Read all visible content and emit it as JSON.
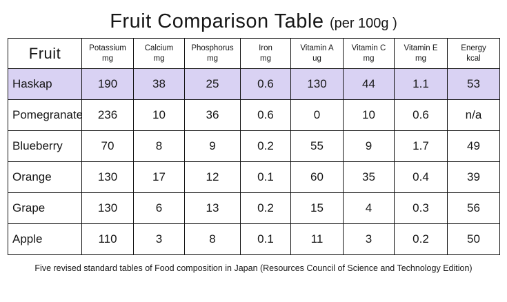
{
  "title": {
    "main": "Fruit Comparison Table",
    "suffix": "(per 100g )"
  },
  "table": {
    "fruit_header": "Fruit",
    "columns": [
      {
        "label": "Potassium",
        "unit": "mg"
      },
      {
        "label": "Calcium",
        "unit": "mg"
      },
      {
        "label": "Phosphorus",
        "unit": "mg"
      },
      {
        "label": "Iron",
        "unit": "mg"
      },
      {
        "label": "Vitamin A",
        "unit": "ug"
      },
      {
        "label": "Vitamin C",
        "unit": "mg"
      },
      {
        "label": "Vitamin E",
        "unit": "mg"
      },
      {
        "label": "Energy",
        "unit": "kcal"
      }
    ],
    "rows": [
      {
        "fruit": "Haskap",
        "highlighted": true,
        "values": [
          "190",
          "38",
          "25",
          "0.6",
          "130",
          "44",
          "1.1",
          "53"
        ]
      },
      {
        "fruit": "Pomegranate",
        "highlighted": false,
        "values": [
          "236",
          "10",
          "36",
          "0.6",
          "0",
          "10",
          "0.6",
          "n/a"
        ]
      },
      {
        "fruit": "Blueberry",
        "highlighted": false,
        "values": [
          "70",
          "8",
          "9",
          "0.2",
          "55",
          "9",
          "1.7",
          "49"
        ]
      },
      {
        "fruit": "Orange",
        "highlighted": false,
        "values": [
          "130",
          "17",
          "12",
          "0.1",
          "60",
          "35",
          "0.4",
          "39"
        ]
      },
      {
        "fruit": "Grape",
        "highlighted": false,
        "values": [
          "130",
          "6",
          "13",
          "0.2",
          "15",
          "4",
          "0.3",
          "56"
        ]
      },
      {
        "fruit": "Apple",
        "highlighted": false,
        "values": [
          "110",
          "3",
          "8",
          "0.1",
          "11",
          "3",
          "0.2",
          "50"
        ]
      }
    ]
  },
  "footer": "Five revised standard tables of Food composition in Japan (Resources Council of Science and Technology Edition)",
  "colors": {
    "highlight_row": "#d9d2f3",
    "border": "#111111",
    "background": "#ffffff"
  }
}
